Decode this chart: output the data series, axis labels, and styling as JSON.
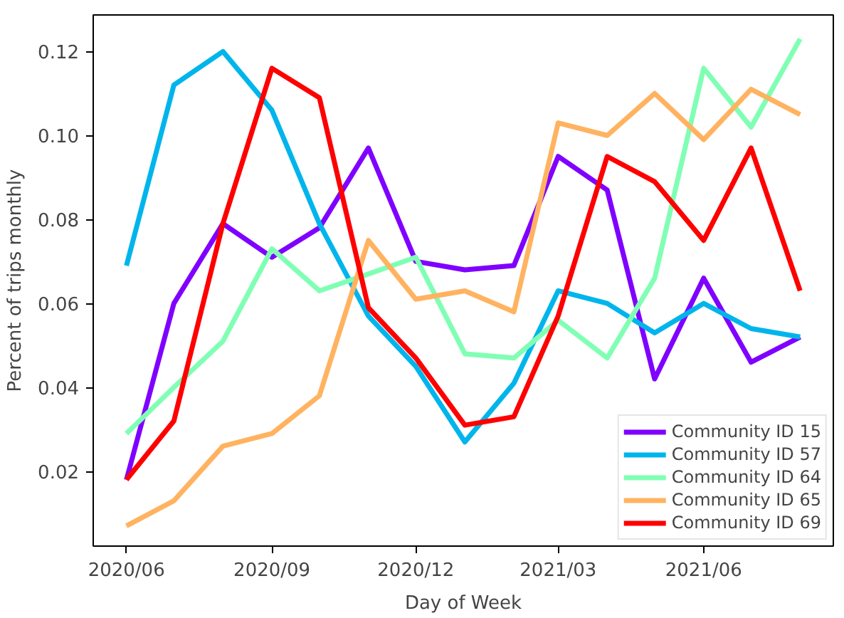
{
  "chart_data": {
    "type": "line",
    "xlabel": "Day of Week",
    "ylabel": "Percent of trips monthly",
    "x": [
      "2020-06",
      "2020-07",
      "2020-08",
      "2020-09",
      "2020-10",
      "2020-11",
      "2020-12",
      "2021-01",
      "2021-02",
      "2021-03",
      "2021-04",
      "2021-05",
      "2021-06",
      "2021-07",
      "2021-08"
    ],
    "xlim": [
      "2020-05-11",
      "2021-08-22"
    ],
    "xticks": [
      {
        "value": "2020-06",
        "label": "2020/06"
      },
      {
        "value": "2020-09",
        "label": "2020/09"
      },
      {
        "value": "2020-12",
        "label": "2020/12"
      },
      {
        "value": "2021-03",
        "label": "2021/03"
      },
      {
        "value": "2021-06",
        "label": "2021/06"
      }
    ],
    "ylim": [
      0.0022,
      0.1287
    ],
    "yticks": [
      {
        "value": 0.02,
        "label": "0.02"
      },
      {
        "value": 0.04,
        "label": "0.04"
      },
      {
        "value": 0.06,
        "label": "0.06"
      },
      {
        "value": 0.08,
        "label": "0.08"
      },
      {
        "value": 0.1,
        "label": "0.10"
      },
      {
        "value": 0.12,
        "label": "0.12"
      }
    ],
    "grid": false,
    "legend": "bottom right",
    "line_style": "solid",
    "series": [
      {
        "name": "Community ID 15",
        "color": "#8000ff",
        "values": [
          0.018,
          0.06,
          0.079,
          0.071,
          0.078,
          0.097,
          0.07,
          0.068,
          0.069,
          0.095,
          0.087,
          0.042,
          0.066,
          0.046,
          0.052
        ]
      },
      {
        "name": "Community ID 57",
        "color": "#00b5eb",
        "values": [
          0.069,
          0.112,
          0.12,
          0.106,
          0.079,
          0.057,
          0.045,
          0.027,
          0.041,
          0.063,
          0.06,
          0.053,
          0.06,
          0.054,
          0.052
        ]
      },
      {
        "name": "Community ID 64",
        "color": "#80ffb4",
        "values": [
          0.029,
          0.04,
          0.051,
          0.073,
          0.063,
          0.067,
          0.071,
          0.048,
          0.047,
          0.056,
          0.047,
          0.066,
          0.116,
          0.102,
          0.123
        ]
      },
      {
        "name": "Community ID 65",
        "color": "#ffb360",
        "values": [
          0.007,
          0.013,
          0.026,
          0.029,
          0.038,
          0.075,
          0.061,
          0.063,
          0.058,
          0.103,
          0.1,
          0.11,
          0.099,
          0.111,
          0.105
        ]
      },
      {
        "name": "Community ID 69",
        "color": "#ff0000",
        "values": [
          0.018,
          0.032,
          0.079,
          0.116,
          0.109,
          0.059,
          0.047,
          0.031,
          0.033,
          0.057,
          0.095,
          0.089,
          0.075,
          0.097,
          0.063
        ]
      }
    ]
  }
}
